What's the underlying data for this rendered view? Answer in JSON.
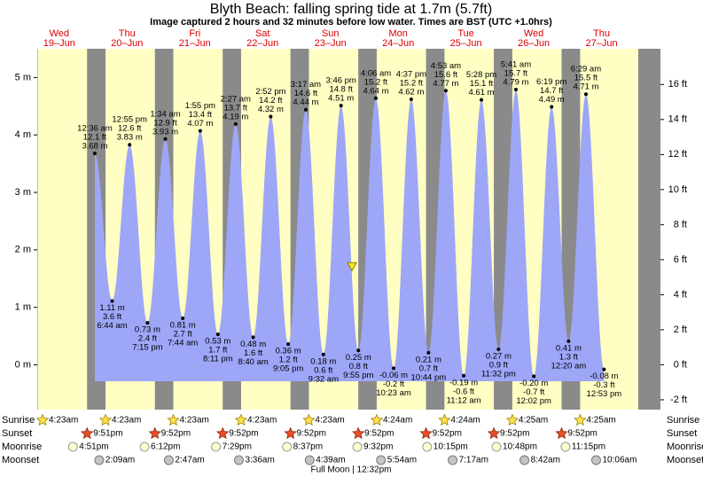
{
  "chart_data": {
    "type": "tide",
    "title": "Blyth Beach: falling  spring tide at 1.7m (5.7ft)",
    "subtitle": "Image captured 2 hours and 32 minutes before low water. Times are BST (UTC +1.0hrs)",
    "current_level_m": 1.7,
    "ylim": [
      -0.78,
      5.5
    ],
    "yticks": [
      {
        "value": 0,
        "label": "0 m"
      },
      {
        "value": 1,
        "label": "1 m"
      },
      {
        "value": 2,
        "label": "2 m"
      },
      {
        "value": 3,
        "label": "3 m"
      },
      {
        "value": 4,
        "label": "4 m"
      },
      {
        "value": 5,
        "label": "5 m"
      }
    ],
    "y2lim": [
      -2.56,
      18.04
    ],
    "y2ticks": [
      {
        "value": -2,
        "label": "-2 ft"
      },
      {
        "value": 0,
        "label": "0 ft"
      },
      {
        "value": 2,
        "label": "2 ft"
      },
      {
        "value": 4,
        "label": "4 ft"
      },
      {
        "value": 6,
        "label": "6 ft"
      },
      {
        "value": 8,
        "label": "8 ft"
      },
      {
        "value": 10,
        "label": "10 ft"
      },
      {
        "value": 12,
        "label": "12 ft"
      },
      {
        "value": 14,
        "label": "14 ft"
      },
      {
        "value": 16,
        "label": "16 ft"
      }
    ],
    "row_labels": {
      "sunrise": "Sunrise",
      "sunset": "Sunset",
      "moonrise": "Moonrise",
      "moonset": "Moonset"
    },
    "moon_phase": "Full Moon | 12:32pm",
    "days": [
      {
        "weekday": "Wed",
        "date": "19–Jun",
        "sunrise": "4:23am",
        "sunset": "9:51pm",
        "moonrise": "4:51pm",
        "tides": []
      },
      {
        "weekday": "Thu",
        "date": "20–Jun",
        "sunrise": "4:23am",
        "sunset": "9:52pm",
        "moonrise": "6:12pm",
        "moonset": "2:09am",
        "tides": [
          {
            "time": "12:36 am",
            "m": 3.68,
            "m_label": "3.68 m",
            "ft": 12.1,
            "ft_label": "12.1 ft"
          },
          {
            "time": "6:44 am",
            "m": 1.11,
            "m_label": "1.11 m",
            "ft": 3.6,
            "ft_label": "3.6 ft"
          },
          {
            "time": "12:55 pm",
            "m": 3.83,
            "m_label": "3.83 m",
            "ft": 12.6,
            "ft_label": "12.6 ft"
          },
          {
            "time": "7:15 pm",
            "m": 0.73,
            "m_label": "0.73 m",
            "ft": 2.4,
            "ft_label": "2.4 ft"
          }
        ]
      },
      {
        "weekday": "Fri",
        "date": "21–Jun",
        "sunrise": "4:23am",
        "sunset": "9:52pm",
        "moonrise": "7:29pm",
        "moonset": "2:47am",
        "tides": [
          {
            "time": "1:34 am",
            "m": 3.93,
            "m_label": "3.93 m",
            "ft": 12.9,
            "ft_label": "12.9 ft"
          },
          {
            "time": "7:44 am",
            "m": 0.81,
            "m_label": "0.81 m",
            "ft": 2.7,
            "ft_label": "2.7 ft"
          },
          {
            "time": "1:55 pm",
            "m": 4.07,
            "m_label": "4.07 m",
            "ft": 13.4,
            "ft_label": "13.4 ft"
          },
          {
            "time": "8:11 pm",
            "m": 0.53,
            "m_label": "0.53 m",
            "ft": 1.7,
            "ft_label": "1.7 ft"
          }
        ]
      },
      {
        "weekday": "Sat",
        "date": "22–Jun",
        "sunrise": "4:23am",
        "sunset": "9:52pm",
        "moonrise": "8:37pm",
        "moonset": "3:36am",
        "tides": [
          {
            "time": "2:27 am",
            "m": 4.19,
            "m_label": "4.19 m",
            "ft": 13.7,
            "ft_label": "13.7 ft"
          },
          {
            "time": "8:40 am",
            "m": 0.48,
            "m_label": "0.48 m",
            "ft": 1.6,
            "ft_label": "1.6 ft"
          },
          {
            "time": "2:52 pm",
            "m": 4.32,
            "m_label": "4.32 m",
            "ft": 14.2,
            "ft_label": "14.2 ft"
          },
          {
            "time": "9:05 pm",
            "m": 0.36,
            "m_label": "0.36 m",
            "ft": 1.2,
            "ft_label": "1.2 ft"
          }
        ]
      },
      {
        "weekday": "Sun",
        "date": "23–Jun",
        "sunrise": "4:23am",
        "sunset": "9:52pm",
        "moonrise": "9:32pm",
        "moonset": "4:39am",
        "tides": [
          {
            "time": "3:17 am",
            "m": 4.44,
            "m_label": "4.44 m",
            "ft": 14.6,
            "ft_label": "14.6 ft"
          },
          {
            "time": "9:32 am",
            "m": 0.18,
            "m_label": "0.18 m",
            "ft": 0.6,
            "ft_label": "0.6 ft"
          },
          {
            "time": "3:46 pm",
            "m": 4.51,
            "m_label": "4.51 m",
            "ft": 14.8,
            "ft_label": "14.8 ft"
          },
          {
            "time": "9:55 pm",
            "m": 0.25,
            "m_label": "0.25 m",
            "ft": 0.8,
            "ft_label": "0.8 ft"
          }
        ]
      },
      {
        "weekday": "Mon",
        "date": "24–Jun",
        "sunrise": "4:24am",
        "sunset": "9:52pm",
        "moonrise": "10:15pm",
        "moonset": "5:54am",
        "tides": [
          {
            "time": "4:06 am",
            "m": 4.64,
            "m_label": "4.64 m",
            "ft": 15.2,
            "ft_label": "15.2 ft"
          },
          {
            "time": "10:23 am",
            "m": -0.06,
            "m_label": "-0.06 m",
            "ft": -0.2,
            "ft_label": "-0.2 ft"
          },
          {
            "time": "4:37 pm",
            "m": 4.62,
            "m_label": "4.62 m",
            "ft": 15.2,
            "ft_label": "15.2 ft"
          },
          {
            "time": "10:44 pm",
            "m": 0.21,
            "m_label": "0.21 m",
            "ft": 0.7,
            "ft_label": "0.7 ft"
          }
        ]
      },
      {
        "weekday": "Tue",
        "date": "25–Jun",
        "sunrise": "4:24am",
        "sunset": "9:52pm",
        "moonrise": "10:48pm",
        "moonset": "7:17am",
        "tides": [
          {
            "time": "4:53 am",
            "m": 4.77,
            "m_label": "4.77 m",
            "ft": 15.6,
            "ft_label": "15.6 ft"
          },
          {
            "time": "11:12 am",
            "m": -0.19,
            "m_label": "-0.19 m",
            "ft": -0.6,
            "ft_label": "-0.6 ft"
          },
          {
            "time": "5:28 pm",
            "m": 4.61,
            "m_label": "4.61 m",
            "ft": 15.1,
            "ft_label": "15.1 ft"
          },
          {
            "time": "11:32 pm",
            "m": 0.27,
            "m_label": "0.27 m",
            "ft": 0.9,
            "ft_label": "0.9 ft"
          }
        ]
      },
      {
        "weekday": "Wed",
        "date": "26–Jun",
        "sunrise": "4:25am",
        "sunset": "9:52pm",
        "moonrise": "11:15pm",
        "moonset": "8:42am",
        "tides": [
          {
            "time": "5:41 am",
            "m": 4.79,
            "m_label": "4.79 m",
            "ft": 15.7,
            "ft_label": "15.7 ft"
          },
          {
            "time": "12:02 pm",
            "m": -0.2,
            "m_label": "-0.20 m",
            "ft": -0.7,
            "ft_label": "-0.7 ft"
          },
          {
            "time": "6:19 pm",
            "m": 4.49,
            "m_label": "4.49 m",
            "ft": 14.7,
            "ft_label": "14.7 ft"
          }
        ]
      },
      {
        "weekday": "Thu",
        "date": "27–Jun",
        "sunrise": "4:25am",
        "moonset": "10:06am",
        "tides": [
          {
            "time": "12:20 am",
            "m": 0.41,
            "m_label": "0.41 m",
            "ft": 1.3,
            "ft_label": "1.3 ft"
          },
          {
            "time": "6:29 am",
            "m": 4.71,
            "m_label": "4.71 m",
            "ft": 15.5,
            "ft_label": "15.5 ft"
          },
          {
            "time": "12:53 pm",
            "m": -0.08,
            "m_label": "-0.08 m",
            "ft": -0.3,
            "ft_label": "-0.3 ft"
          }
        ]
      }
    ]
  }
}
